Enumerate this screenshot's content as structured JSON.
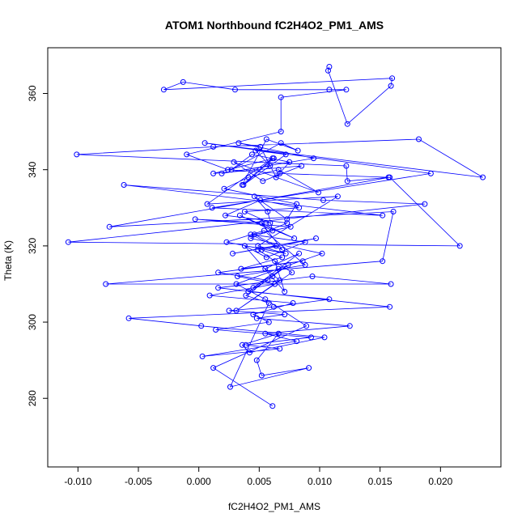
{
  "chart_data": {
    "type": "scatter",
    "title": "ATOM1 Northbound fC2H4O2_PM1_AMS",
    "xlabel": "fC2H4O2_PM1_AMS",
    "ylabel": "Theta (K)",
    "xlim": [
      -0.0125,
      0.025
    ],
    "ylim": [
      262,
      372
    ],
    "xticks": [
      -0.01,
      -0.005,
      0.0,
      0.005,
      0.01,
      0.015,
      0.02
    ],
    "xtick_labels": [
      "-0.010",
      "-0.005",
      "0.000",
      "0.005",
      "0.010",
      "0.015",
      "0.020"
    ],
    "yticks": [
      280,
      300,
      320,
      340,
      360
    ],
    "ytick_labels": [
      "280",
      "300",
      "320",
      "340",
      "360"
    ],
    "grid": false,
    "legend": "none",
    "color": "#0000FF",
    "marker": "open-circle",
    "connected": true,
    "series": [
      {
        "x": [
          0.0108,
          0.0107,
          0.0123,
          0.0159,
          0.016,
          -0.0029,
          -0.0013,
          0.003,
          0.0108,
          0.0122,
          0.0068,
          0.0068,
          -0.001,
          0.0024,
          0.0067,
          0.0157,
          0.0123,
          0.0122,
          -0.0101,
          0.0012,
          0.0182,
          0.0235,
          0.0005,
          0.0192,
          0.0011,
          0.0152,
          -0.0062,
          0.0103,
          0.0187,
          -0.0108,
          0.0216,
          0.0158,
          -0.0074,
          0.0161,
          0.0152,
          -0.0077,
          0.0159,
          0.0094,
          0.0016,
          0.0158,
          -0.0058,
          0.0002,
          0.0104,
          0.0042,
          0.0036,
          0.0066,
          0.0048,
          0.0052,
          0.0091,
          0.0026,
          0.0058,
          0.0039,
          0.0061,
          0.0074,
          0.0045,
          0.0083,
          0.0055,
          0.0067,
          0.0031,
          0.0077,
          0.0049,
          0.0063,
          0.0071,
          0.0038,
          0.0056,
          0.0088,
          0.0043,
          0.0069,
          0.0052,
          0.0079,
          0.0034,
          0.0061,
          0.0057,
          0.0046,
          0.0073,
          0.0081,
          0.0021,
          0.0041,
          0.0066,
          0.0099,
          0.0029,
          0.0053,
          0.0085,
          0.0012,
          0.0062,
          0.0037,
          0.0072,
          0.0047,
          0.0059,
          0.0019,
          0.0095,
          0.0033,
          0.0051,
          0.0064,
          0.0075,
          0.0044,
          0.0027,
          0.0068,
          0.0082,
          0.0056,
          0.0036,
          0.0061,
          0.0007,
          0.0115,
          0.0049,
          0.0072,
          0.0023,
          0.0054,
          0.0088,
          0.0032,
          0.0063,
          0.0009,
          0.0078,
          0.0045,
          0.0058,
          0.0014,
          0.0093,
          0.0039,
          0.0067,
          0.0003,
          0.0081,
          0.0055,
          0.0125,
          0.0048,
          0.0071,
          0.0025,
          0.0062,
          0.0108,
          0.0041,
          0.0057,
          0.0016,
          0.0086,
          0.0035,
          0.0069,
          0.0052,
          0.0097,
          0.0028,
          0.0064,
          0.0046,
          0.0076,
          -0.0003,
          0.0059,
          0.0038,
          0.0083,
          0.0051,
          0.0022,
          0.0073,
          0.0043,
          0.0102,
          0.0066,
          0.0031,
          0.0055,
          0.0089,
          0.0012,
          0.0061
        ],
        "y": [
          367,
          366,
          352,
          362,
          364,
          361,
          363,
          361,
          361,
          361,
          359,
          350,
          344,
          340,
          339,
          338,
          337,
          341,
          344,
          346,
          348,
          338,
          347,
          339,
          330,
          328,
          336,
          332,
          331,
          321,
          320,
          338,
          325,
          329,
          316,
          310,
          310,
          312,
          309,
          304,
          301,
          299,
          296,
          292,
          294,
          297,
          290,
          286,
          288,
          283,
          305,
          307,
          312,
          315,
          309,
          318,
          314,
          311,
          303,
          313,
          319,
          316,
          308,
          320,
          317,
          321,
          323,
          319,
          326,
          322,
          328,
          324,
          329,
          333,
          327,
          331,
          335,
          338,
          340,
          334,
          342,
          337,
          341,
          339,
          343,
          336,
          344,
          345,
          341,
          339,
          343,
          347,
          346,
          338,
          342,
          344,
          340,
          347,
          345,
          348,
          336,
          343,
          331,
          333,
          320,
          318,
          321,
          324,
          315,
          312,
          310,
          307,
          305,
          302,
          300,
          298,
          296,
          294,
          293,
          291,
          295,
          297,
          299,
          301,
          302,
          303,
          304,
          306,
          308,
          311,
          313,
          316,
          314,
          317,
          319,
          322,
          318,
          320,
          323,
          325,
          327,
          326,
          329,
          330,
          332,
          328,
          326,
          322,
          318,
          314,
          310,
          306,
          299,
          288,
          278
        ]
      }
    ]
  }
}
